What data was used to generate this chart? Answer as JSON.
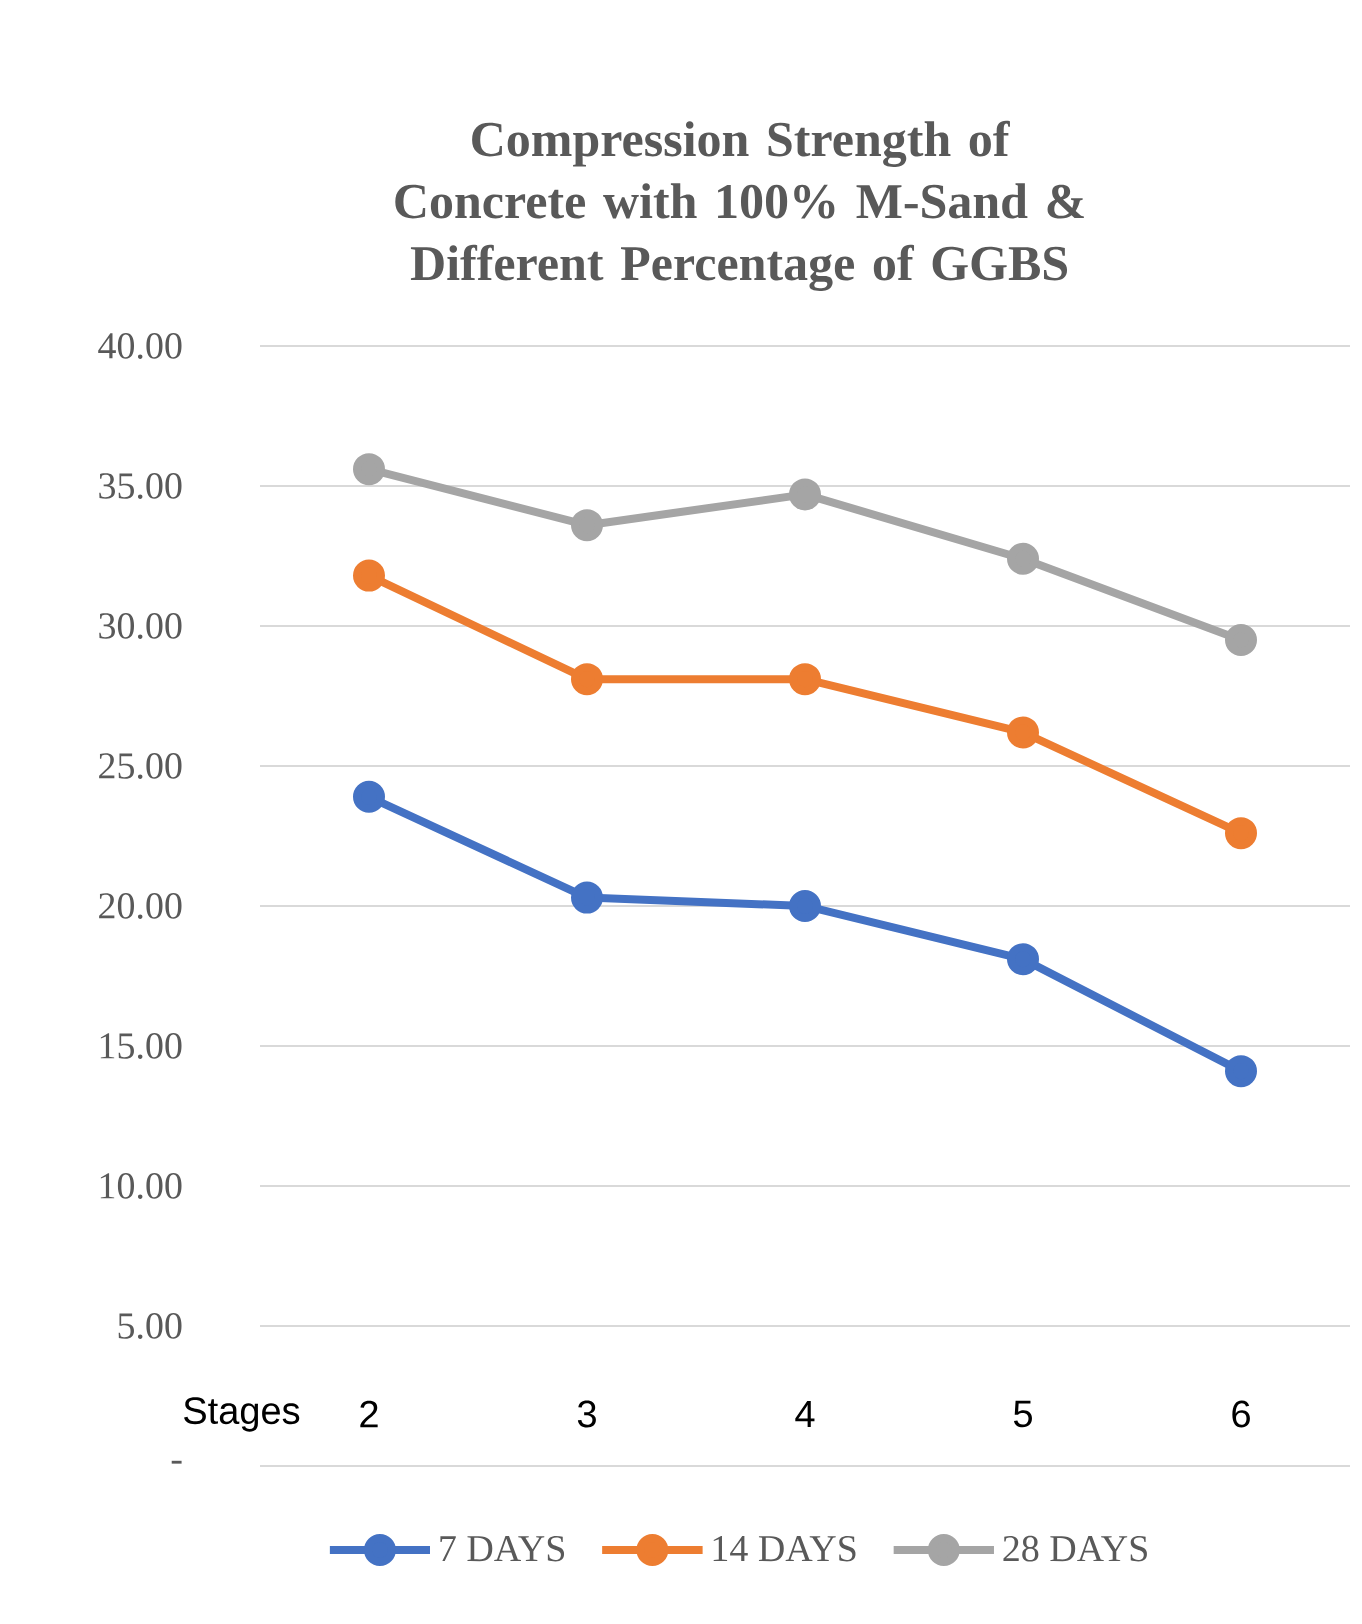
{
  "chart_data": {
    "type": "line",
    "title": "Compression Strength of Concrete with 100% M-Sand & Different Percentage of GGBS",
    "xlabel": "Stages",
    "categories": [
      "2",
      "3",
      "4",
      "5",
      "6"
    ],
    "series": [
      {
        "name": "7 DAYS",
        "color": "#4472c4",
        "values": [
          23.9,
          20.3,
          20.0,
          18.1,
          14.1
        ]
      },
      {
        "name": "14 DAYS",
        "color": "#ed7d31",
        "values": [
          31.8,
          28.1,
          28.1,
          26.2,
          22.6
        ]
      },
      {
        "name": "28 DAYS",
        "color": "#a5a5a5",
        "values": [
          35.6,
          33.6,
          34.7,
          32.4,
          29.5
        ]
      }
    ],
    "ylim": [
      0,
      40
    ],
    "yticks": [
      {
        "value": 0,
        "label": "-"
      },
      {
        "value": 5,
        "label": "5.00"
      },
      {
        "value": 10,
        "label": "10.00"
      },
      {
        "value": 15,
        "label": "15.00"
      },
      {
        "value": 20,
        "label": "20.00"
      },
      {
        "value": 25,
        "label": "25.00"
      },
      {
        "value": 30,
        "label": "30.00"
      },
      {
        "value": 35,
        "label": "35.00"
      },
      {
        "value": 40,
        "label": "40.00"
      }
    ],
    "grid": "y",
    "legend": "bottom",
    "marker": "circle",
    "line_style": "solid"
  }
}
